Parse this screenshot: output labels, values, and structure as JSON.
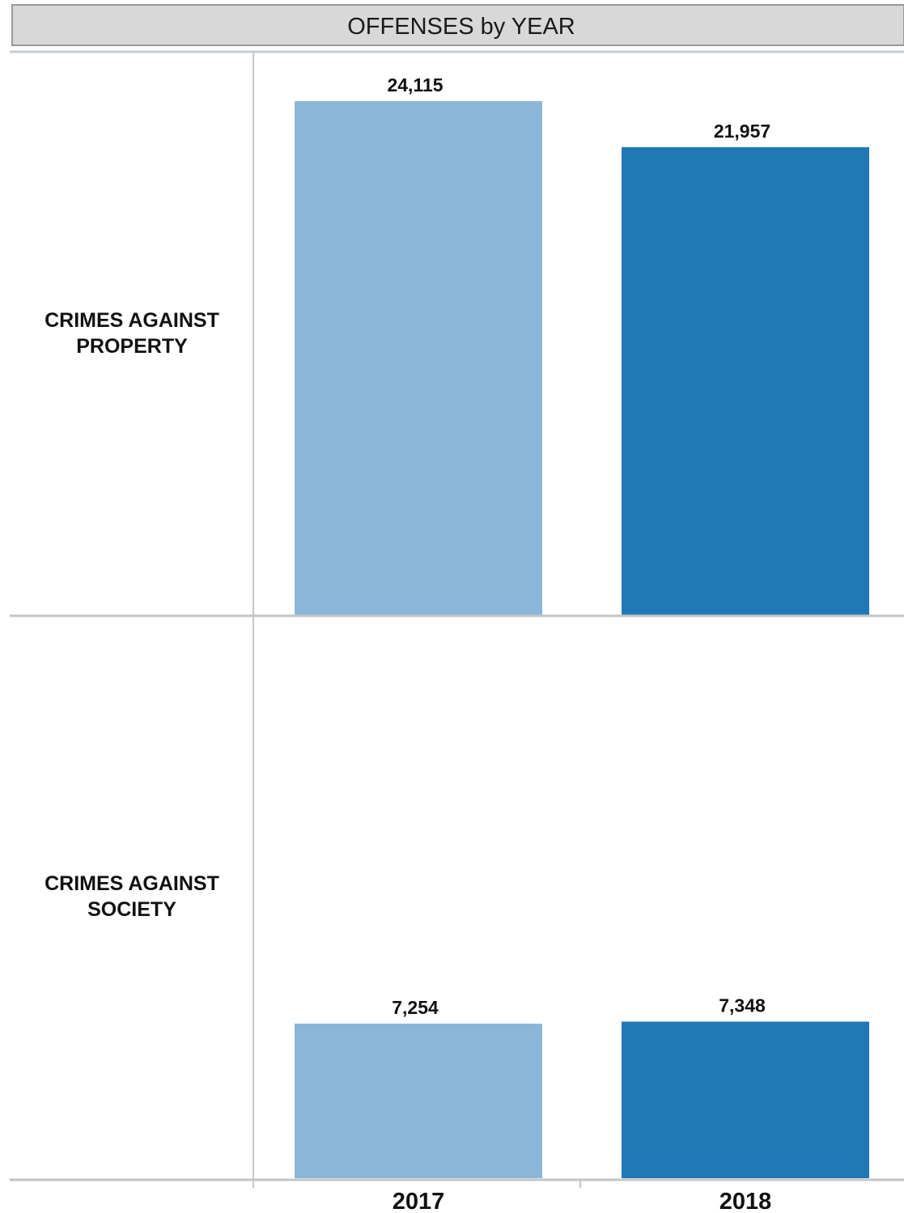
{
  "chart_data": {
    "type": "bar",
    "title": "OFFENSES by YEAR",
    "categories": [
      "2017",
      "2018"
    ],
    "category_colors": [
      "#8ab7d9",
      "#2178b5"
    ],
    "ylim": [
      0,
      24115
    ],
    "grid": false,
    "legend": "none",
    "rows": [
      {
        "label_lines": [
          "CRIMES AGAINST",
          "PROPERTY"
        ],
        "values": [
          24115,
          21957
        ],
        "value_labels": [
          "24,115",
          "21,957"
        ]
      },
      {
        "label_lines": [
          "CRIMES AGAINST",
          "SOCIETY"
        ],
        "values": [
          7254,
          7348
        ],
        "value_labels": [
          "7,254",
          "7,348"
        ]
      }
    ]
  }
}
